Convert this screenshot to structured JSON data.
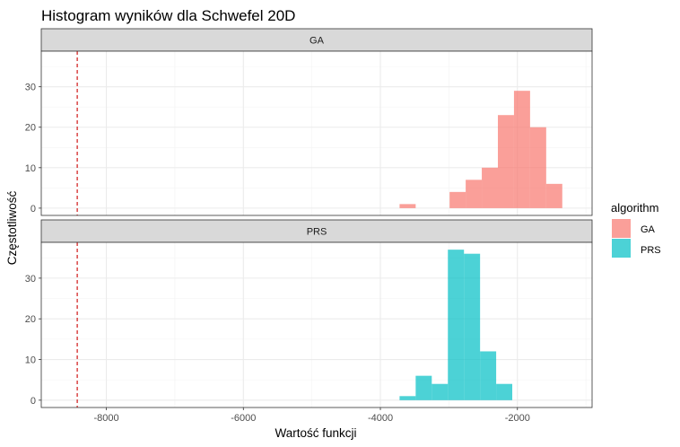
{
  "chart_data": {
    "type": "bar",
    "title": "Histogram wyników dla Schwefel 20D",
    "xlabel": "Wartość funkcji",
    "ylabel": "Częstotliwość",
    "xlim": [
      -8950,
      -910
    ],
    "x_ticks": [
      -8000,
      -6000,
      -4000,
      -2000
    ],
    "x_tick_labels": [
      "-8000",
      "-6000",
      "-4000",
      "-2000"
    ],
    "y_ticks": [
      0,
      10,
      20,
      30
    ],
    "y_tick_labels": [
      "0",
      "10",
      "20",
      "30"
    ],
    "ylim": [
      -1.8,
      38.8
    ],
    "bin_width": 235,
    "reference_line": {
      "x": -8425,
      "color": "#cc0000",
      "style": "dashed"
    },
    "legend": {
      "title": "algorithm",
      "position": "right",
      "entries": [
        {
          "label": "GA",
          "color": "#F8766D"
        },
        {
          "label": "PRS",
          "color": "#00BFC4"
        }
      ]
    },
    "panels": [
      {
        "strip_label": "GA",
        "color": "#F8766D",
        "bins": [
          {
            "x0": -3720,
            "x1": -3485,
            "count": 1
          },
          {
            "x0": -2990,
            "x1": -2755,
            "count": 4
          },
          {
            "x0": -2755,
            "x1": -2520,
            "count": 7
          },
          {
            "x0": -2520,
            "x1": -2285,
            "count": 10
          },
          {
            "x0": -2285,
            "x1": -2050,
            "count": 23
          },
          {
            "x0": -2050,
            "x1": -1815,
            "count": 29
          },
          {
            "x0": -1815,
            "x1": -1580,
            "count": 20
          },
          {
            "x0": -1580,
            "x1": -1345,
            "count": 6
          }
        ]
      },
      {
        "strip_label": "PRS",
        "color": "#00BFC4",
        "bins": [
          {
            "x0": -3720,
            "x1": -3485,
            "count": 1
          },
          {
            "x0": -3485,
            "x1": -3250,
            "count": 6
          },
          {
            "x0": -3250,
            "x1": -3015,
            "count": 4
          },
          {
            "x0": -3015,
            "x1": -2780,
            "count": 37
          },
          {
            "x0": -2780,
            "x1": -2545,
            "count": 36
          },
          {
            "x0": -2545,
            "x1": -2310,
            "count": 12
          },
          {
            "x0": -2310,
            "x1": -2075,
            "count": 4
          }
        ]
      }
    ],
    "grid": true,
    "theme": {
      "panel_border": "#333333",
      "strip_fill": "#D9D9D9",
      "grid_major": "#EBEBEB",
      "grid_minor": "#F4F4F4",
      "bar_opacity": 0.7
    }
  }
}
